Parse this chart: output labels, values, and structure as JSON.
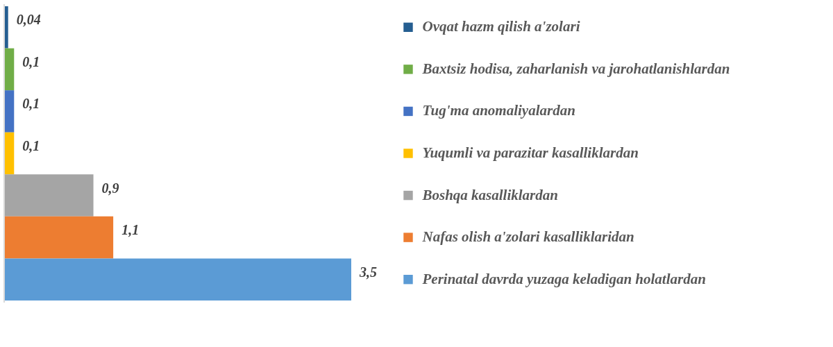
{
  "chart_data": {
    "type": "bar",
    "orientation": "horizontal",
    "categories": [
      "Ovqat hazm qilish a'zolari",
      " Baxtsiz hodisa, zaharlanish va jarohatlanishlardan",
      "Tug'ma anomaliyalardan",
      "Yuqumli va parazitar kasalliklardan",
      "Boshqa kasalliklardan",
      "Nafas olish a'zolari kasalliklaridan",
      "Perinatal davrda yuzaga keladigan holatlardan"
    ],
    "values": [
      0.04,
      0.1,
      0.1,
      0.1,
      0.9,
      1.1,
      3.5
    ],
    "colors": [
      "#255e91",
      "#70ad47",
      "#4472c4",
      "#ffc000",
      "#a5a5a5",
      "#ed7d31",
      "#5b9bd5"
    ],
    "value_labels": [
      "0,04",
      "0,1",
      "0,1",
      "0,1",
      "0,9",
      "1,1",
      "3,5"
    ]
  }
}
